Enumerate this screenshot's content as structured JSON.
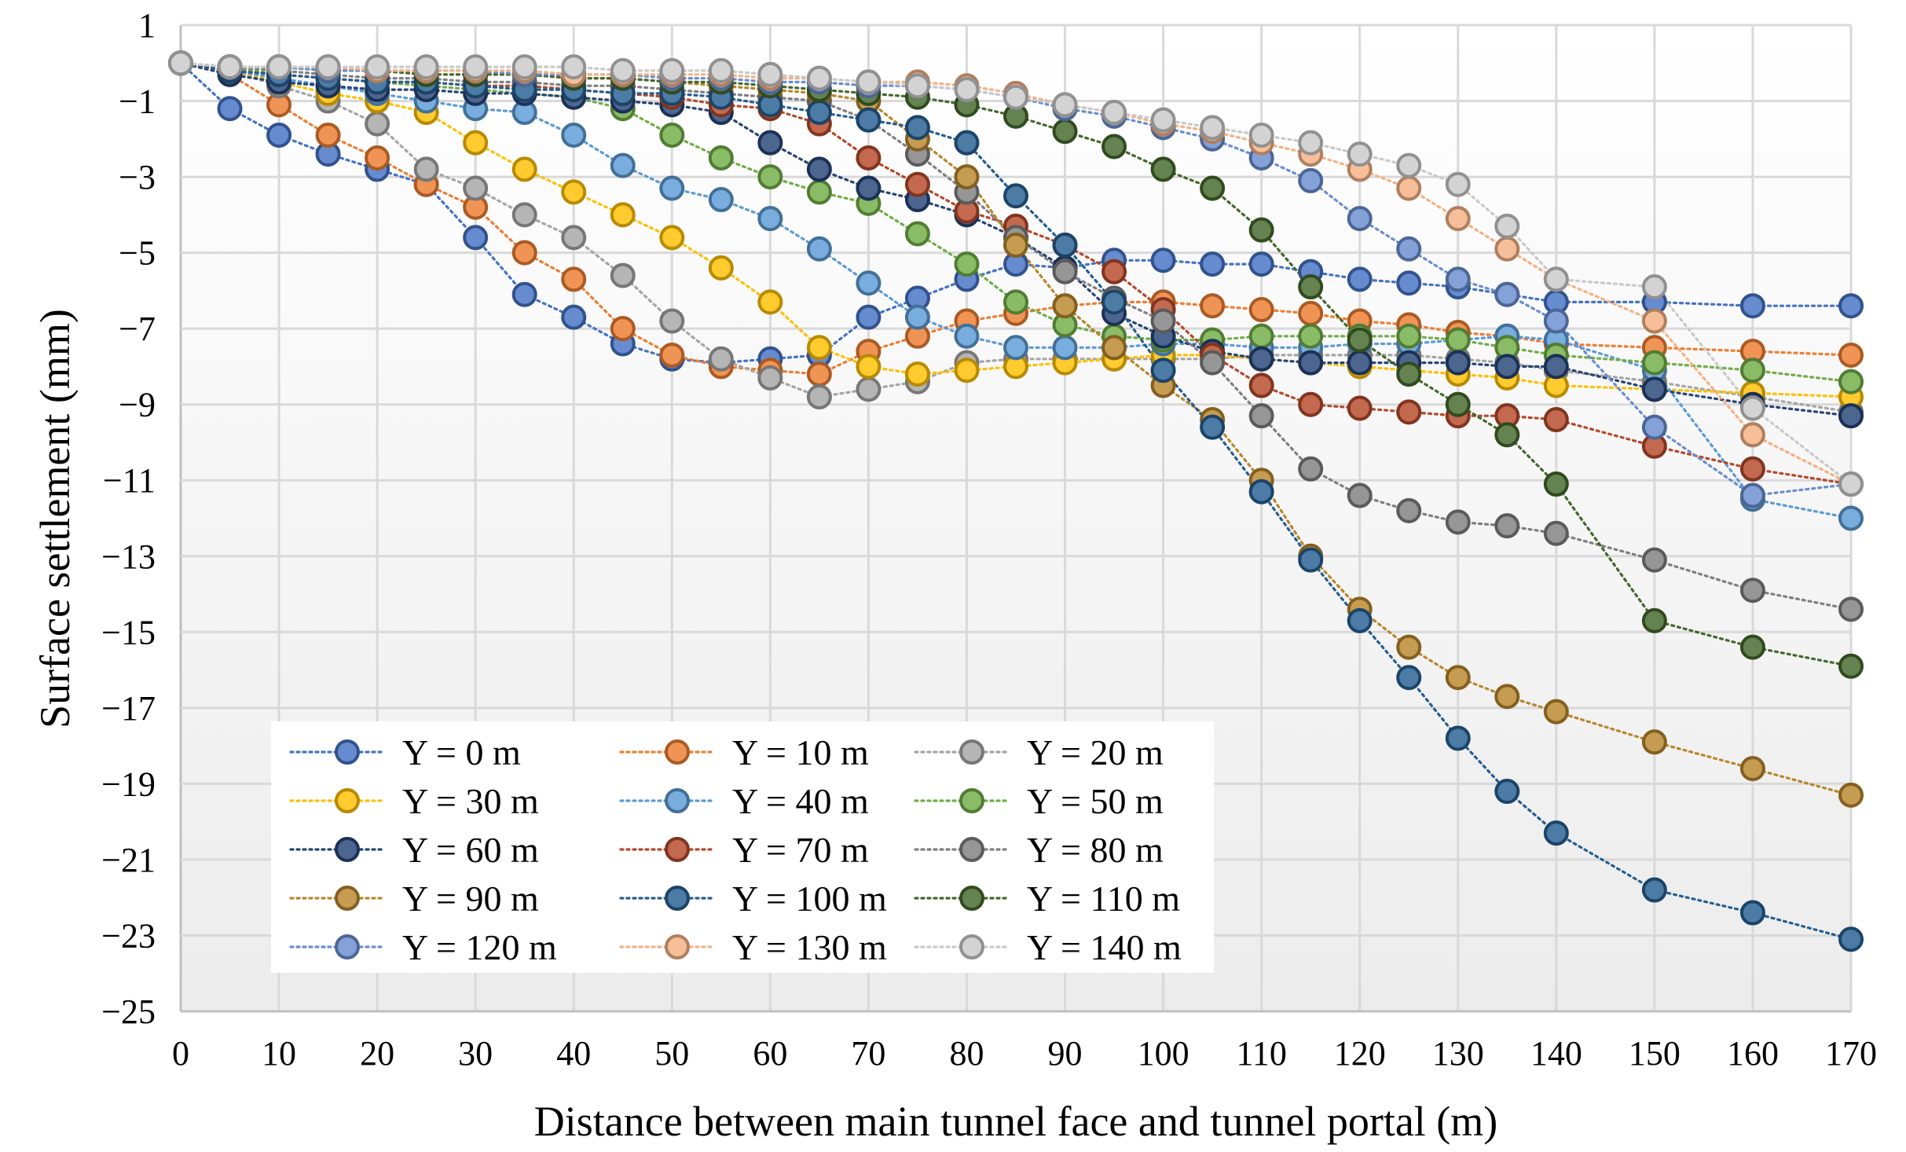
{
  "chart_data": {
    "type": "line",
    "title": "",
    "xlabel": "Distance between main tunnel face and tunnel portal (m)",
    "ylabel": "Surface settlement (mm)",
    "xlim": [
      0,
      170
    ],
    "ylim": [
      -25,
      1
    ],
    "x_ticks": [
      "0",
      "10",
      "20",
      "30",
      "40",
      "50",
      "60",
      "70",
      "80",
      "90",
      "100",
      "110",
      "120",
      "130",
      "140",
      "150",
      "160",
      "170"
    ],
    "y_ticks": [
      "1",
      "−1",
      "−3",
      "−5",
      "−7",
      "−9",
      "−11",
      "−13",
      "−15",
      "−17",
      "−19",
      "−21",
      "−23",
      "−25"
    ],
    "x": [
      0,
      5,
      10,
      15,
      20,
      25,
      30,
      35,
      40,
      45,
      50,
      55,
      60,
      65,
      70,
      75,
      80,
      85,
      90,
      95,
      100,
      105,
      110,
      115,
      120,
      125,
      130,
      135,
      140,
      150,
      160,
      170
    ],
    "legend_position": "bottom-left",
    "series": [
      {
        "name": "Y = 0 m",
        "color": "#4472c4",
        "values": [
          0,
          -1.2,
          -1.9,
          -2.4,
          -2.8,
          -3.2,
          -4.6,
          -6.1,
          -6.7,
          -7.4,
          -7.8,
          -7.9,
          -7.8,
          -7.7,
          -6.7,
          -6.2,
          -5.7,
          -5.3,
          -5.4,
          -5.2,
          -5.2,
          -5.3,
          -5.3,
          -5.5,
          -5.7,
          -5.8,
          -5.9,
          -6.1,
          -6.3,
          -6.3,
          -6.4,
          -6.4
        ]
      },
      {
        "name": "Y = 10 m",
        "color": "#ed7d31",
        "values": [
          0,
          -0.3,
          -1.1,
          -1.9,
          -2.5,
          -3.2,
          -3.8,
          -5.0,
          -5.7,
          -7.0,
          -7.7,
          -8.0,
          -8.1,
          -8.2,
          -7.6,
          -7.2,
          -6.8,
          -6.6,
          -6.4,
          -6.3,
          -6.3,
          -6.4,
          -6.5,
          -6.6,
          -6.8,
          -6.9,
          -7.1,
          -7.2,
          -7.4,
          -7.5,
          -7.6,
          -7.7
        ]
      },
      {
        "name": "Y = 20 m",
        "color": "#a5a5a5",
        "values": [
          0,
          -0.2,
          -0.6,
          -1.0,
          -1.6,
          -2.8,
          -3.3,
          -4.0,
          -4.6,
          -5.6,
          -6.8,
          -7.8,
          -8.3,
          -8.8,
          -8.6,
          -8.4,
          -7.9,
          -7.8,
          -7.8,
          -7.8,
          -7.8,
          -7.8,
          -7.7,
          -7.7,
          -7.7,
          -7.7,
          -7.8,
          -7.9,
          -8.1,
          -8.4,
          -8.8,
          -9.2
        ]
      },
      {
        "name": "Y = 30 m",
        "color": "#ffc000",
        "values": [
          0,
          -0.2,
          -0.5,
          -0.8,
          -1.0,
          -1.3,
          -2.1,
          -2.8,
          -3.4,
          -4.0,
          -4.6,
          -5.4,
          -6.3,
          -7.5,
          -8.0,
          -8.2,
          -8.1,
          -8.0,
          -7.9,
          -7.8,
          -7.7,
          -7.7,
          -7.8,
          -7.9,
          -8.0,
          -8.1,
          -8.2,
          -8.3,
          -8.5,
          -8.6,
          -8.7,
          -8.8
        ]
      },
      {
        "name": "Y = 40 m",
        "color": "#5b9bd5",
        "values": [
          0,
          -0.2,
          -0.4,
          -0.6,
          -0.8,
          -1.0,
          -1.2,
          -1.3,
          -1.9,
          -2.7,
          -3.3,
          -3.6,
          -4.1,
          -4.9,
          -5.8,
          -6.7,
          -7.2,
          -7.5,
          -7.5,
          -7.5,
          -7.4,
          -7.4,
          -7.5,
          -7.5,
          -7.4,
          -7.4,
          -7.3,
          -7.2,
          -7.3,
          -8.1,
          -11.5,
          -12.0
        ]
      },
      {
        "name": "Y = 50 m",
        "color": "#70ad47",
        "values": [
          0,
          -0.1,
          -0.3,
          -0.4,
          -0.5,
          -0.6,
          -0.7,
          -0.8,
          -0.9,
          -1.2,
          -1.9,
          -2.5,
          -3.0,
          -3.4,
          -3.7,
          -4.5,
          -5.3,
          -6.3,
          -6.9,
          -7.2,
          -7.3,
          -7.3,
          -7.2,
          -7.2,
          -7.2,
          -7.2,
          -7.3,
          -7.5,
          -7.7,
          -7.9,
          -8.1,
          -8.4
        ]
      },
      {
        "name": "Y = 60 m",
        "color": "#264478",
        "values": [
          0,
          -0.3,
          -0.5,
          -0.6,
          -0.7,
          -0.7,
          -0.8,
          -0.8,
          -0.9,
          -1.0,
          -1.1,
          -1.3,
          -2.1,
          -2.8,
          -3.3,
          -3.6,
          -4.0,
          -4.6,
          -5.4,
          -6.6,
          -7.2,
          -7.6,
          -7.8,
          -7.9,
          -7.9,
          -7.9,
          -7.9,
          -8.0,
          -8.0,
          -8.6,
          -9.0,
          -9.3
        ]
      },
      {
        "name": "Y = 70 m",
        "color": "#b5482a",
        "values": [
          0,
          -0.2,
          -0.3,
          -0.4,
          -0.5,
          -0.5,
          -0.6,
          -0.6,
          -0.7,
          -0.8,
          -0.9,
          -1.1,
          -1.2,
          -1.6,
          -2.5,
          -3.2,
          -3.9,
          -4.3,
          -4.8,
          -5.5,
          -6.5,
          -7.7,
          -8.5,
          -9.0,
          -9.1,
          -9.2,
          -9.3,
          -9.3,
          -9.4,
          -10.1,
          -10.7,
          -11.1
        ]
      },
      {
        "name": "Y = 80 m",
        "color": "#7f7f7f",
        "values": [
          0,
          -0.1,
          -0.2,
          -0.3,
          -0.4,
          -0.4,
          -0.5,
          -0.5,
          -0.6,
          -0.6,
          -0.7,
          -0.8,
          -0.9,
          -1.0,
          -1.5,
          -2.4,
          -3.4,
          -4.6,
          -5.5,
          -6.2,
          -6.8,
          -7.9,
          -9.3,
          -10.7,
          -11.4,
          -11.8,
          -12.1,
          -12.2,
          -12.4,
          -13.1,
          -13.9,
          -14.4
        ]
      },
      {
        "name": "Y = 90 m",
        "color": "#b8862b",
        "values": [
          0,
          -0.1,
          -0.1,
          -0.2,
          -0.2,
          -0.3,
          -0.3,
          -0.3,
          -0.4,
          -0.4,
          -0.5,
          -0.6,
          -0.7,
          -0.8,
          -1.0,
          -2.0,
          -3.0,
          -4.8,
          -6.4,
          -7.5,
          -8.5,
          -9.4,
          -11.0,
          -13.0,
          -14.4,
          -15.4,
          -16.2,
          -16.7,
          -17.1,
          -17.9,
          -18.6,
          -19.3
        ]
      },
      {
        "name": "Y = 100 m",
        "color": "#255e91",
        "values": [
          0,
          -0.2,
          -0.3,
          -0.4,
          -0.5,
          -0.5,
          -0.6,
          -0.7,
          -0.7,
          -0.8,
          -0.8,
          -0.9,
          -1.1,
          -1.3,
          -1.5,
          -1.7,
          -2.1,
          -3.5,
          -4.8,
          -6.3,
          -8.1,
          -9.6,
          -11.3,
          -13.1,
          -14.7,
          -16.2,
          -17.8,
          -19.2,
          -20.3,
          -21.8,
          -22.4,
          -23.1
        ]
      },
      {
        "name": "Y = 110 m",
        "color": "#43682b",
        "values": [
          0,
          -0.1,
          -0.1,
          -0.2,
          -0.2,
          -0.3,
          -0.3,
          -0.3,
          -0.4,
          -0.4,
          -0.5,
          -0.5,
          -0.6,
          -0.7,
          -0.8,
          -0.9,
          -1.1,
          -1.4,
          -1.8,
          -2.2,
          -2.8,
          -3.3,
          -4.4,
          -5.9,
          -7.3,
          -8.2,
          -9.0,
          -9.8,
          -11.1,
          -14.7,
          -15.4,
          -15.9
        ]
      },
      {
        "name": "Y = 120 m",
        "color": "#698ed0",
        "values": [
          0,
          -0.1,
          -0.1,
          -0.2,
          -0.2,
          -0.2,
          -0.2,
          -0.3,
          -0.3,
          -0.3,
          -0.4,
          -0.4,
          -0.5,
          -0.5,
          -0.6,
          -0.6,
          -0.7,
          -0.9,
          -1.2,
          -1.4,
          -1.7,
          -2.0,
          -2.5,
          -3.1,
          -4.1,
          -4.9,
          -5.7,
          -6.1,
          -6.8,
          -9.6,
          -11.4,
          -11.1
        ]
      },
      {
        "name": "Y = 130 m",
        "color": "#f4b183",
        "values": [
          0,
          -0.1,
          -0.1,
          -0.1,
          -0.2,
          -0.2,
          -0.2,
          -0.2,
          -0.3,
          -0.3,
          -0.3,
          -0.3,
          -0.4,
          -0.4,
          -0.5,
          -0.5,
          -0.6,
          -0.8,
          -1.1,
          -1.3,
          -1.6,
          -1.8,
          -2.1,
          -2.4,
          -2.8,
          -3.3,
          -4.1,
          -4.9,
          -5.7,
          -6.8,
          -9.8,
          -11.1
        ]
      },
      {
        "name": "Y = 140 m",
        "color": "#c9c9c9",
        "values": [
          0,
          -0.1,
          -0.1,
          -0.1,
          -0.1,
          -0.1,
          -0.1,
          -0.1,
          -0.1,
          -0.2,
          -0.2,
          -0.2,
          -0.3,
          -0.4,
          -0.5,
          -0.6,
          -0.7,
          -0.9,
          -1.1,
          -1.3,
          -1.5,
          -1.7,
          -1.9,
          -2.1,
          -2.4,
          -2.7,
          -3.2,
          -4.3,
          -5.7,
          -5.9,
          -9.1,
          -11.1
        ]
      }
    ]
  }
}
